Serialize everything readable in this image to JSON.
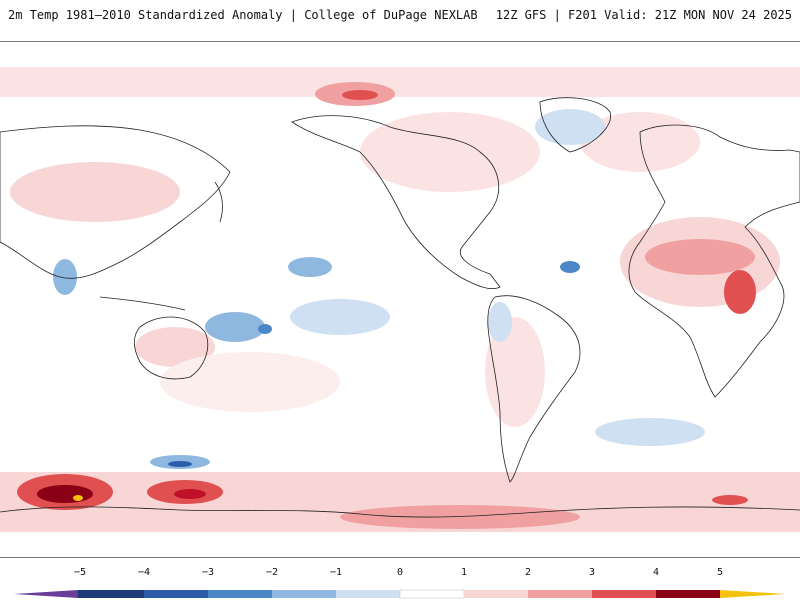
{
  "header": {
    "left_title": "2m Temp 1981–2010 Standardized Anomaly | College of DuPage NEXLAB",
    "right_title": "12Z GFS | F201 Valid: 21Z MON NOV 24 2025"
  },
  "legend": {
    "ticks": [
      "−5",
      "−4",
      "−3",
      "−2",
      "−1",
      "0",
      "1",
      "2",
      "3",
      "4",
      "5"
    ],
    "tick_values": [
      -5,
      -4,
      -3,
      -2,
      -1,
      0,
      1,
      2,
      3,
      4,
      5
    ],
    "colors": {
      "minus_extreme": "#6a3d9a",
      "minus_5": "#1f3a78",
      "minus_4": "#2b5ca8",
      "minus_3": "#4b86c6",
      "minus_2": "#8fb8e0",
      "minus_1": "#cfe0f2",
      "zero_minus": "#ffffff",
      "zero_plus": "#ffffff",
      "plus_1": "#f9d6d6",
      "plus_2": "#f0a0a0",
      "plus_3": "#e05050",
      "plus_4": "#c0102a",
      "plus_5": "#8a0015",
      "plus_extreme": "#f4c20d"
    }
  },
  "map": {
    "type": "global anomaly map",
    "projection": "equirectangular",
    "colors": {
      "land_outline": "#222222",
      "ocean": "#ffffff"
    }
  }
}
